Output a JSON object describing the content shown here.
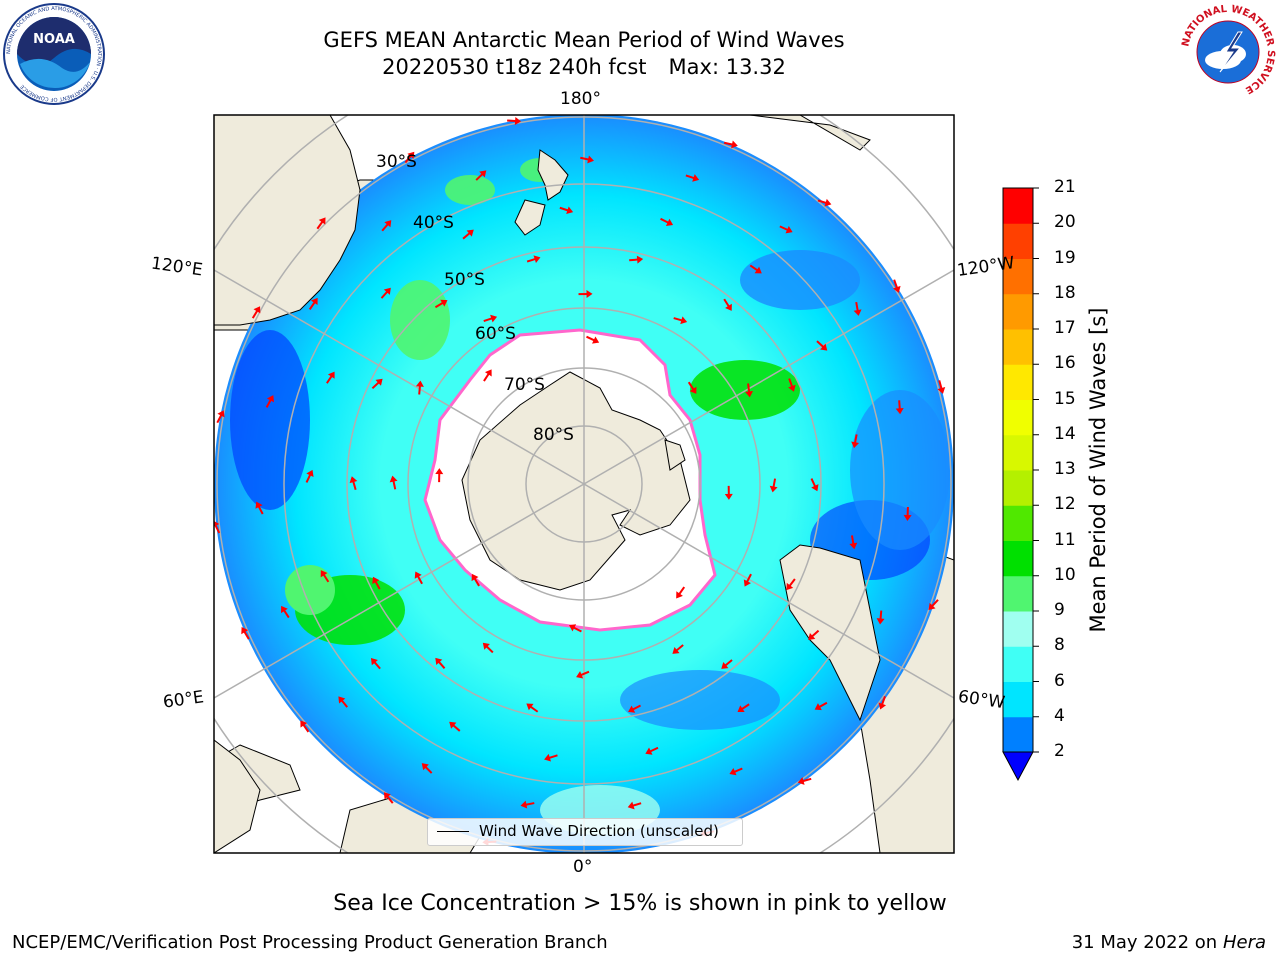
{
  "title": {
    "line1": "GEFS MEAN Antarctic Mean Period of Wind Waves",
    "line2_run": "20220530 t18z 240h fcst",
    "line2_max": "Max: 13.32"
  },
  "logos": {
    "noaa": "NOAA",
    "noaa_ring": "NATIONAL OCEANIC AND ATMOSPHERIC ADMINISTRATION · U.S. DEPARTMENT OF COMMERCE",
    "nws_ring": "NATIONAL WEATHER SERVICE"
  },
  "map": {
    "projection": "south-polar-stereographic",
    "longitude_labels": {
      "top": "180°",
      "left_upper": "120°E",
      "right_upper": "120°W",
      "left_lower": "60°E",
      "right_lower": "60°W",
      "bottom": "0°"
    },
    "latitude_labels": [
      "30°S",
      "40°S",
      "50°S",
      "60°S",
      "70°S",
      "80°S"
    ],
    "colors": {
      "land": "#efebdc",
      "ice": "#ffffff",
      "ice_edge": "#ff66cc",
      "arrows": "#ff0000",
      "grid": "#b0b0b0"
    }
  },
  "legend": {
    "label": "Wind Wave Direction (unscaled)"
  },
  "colorbar": {
    "title": "Mean Period of Wind Waves [s]",
    "ticks": [
      "2",
      "4",
      "6",
      "8",
      "9",
      "10",
      "11",
      "12",
      "13",
      "14",
      "15",
      "16",
      "17",
      "18",
      "19",
      "20",
      "21"
    ],
    "levels": [
      2,
      4,
      6,
      8,
      9,
      10,
      11,
      12,
      13,
      14,
      15,
      16,
      17,
      18,
      19,
      20,
      21
    ],
    "colors": [
      "#0080ff",
      "#00e5ff",
      "#40fff5",
      "#a0fff0",
      "#50f570",
      "#00e000",
      "#50e800",
      "#b4f000",
      "#d8f800",
      "#f0ff00",
      "#ffe800",
      "#ffc000",
      "#ff9a00",
      "#ff7000",
      "#ff4000",
      "#ff0000"
    ],
    "under_color": "#0000ff"
  },
  "caption": "Sea Ice Concentration > 15% is shown in pink to yellow",
  "footer": {
    "left": "NCEP/EMC/Verification Post Processing Product Generation Branch",
    "right_date": "31 May 2022 on",
    "right_host": "Hera"
  }
}
